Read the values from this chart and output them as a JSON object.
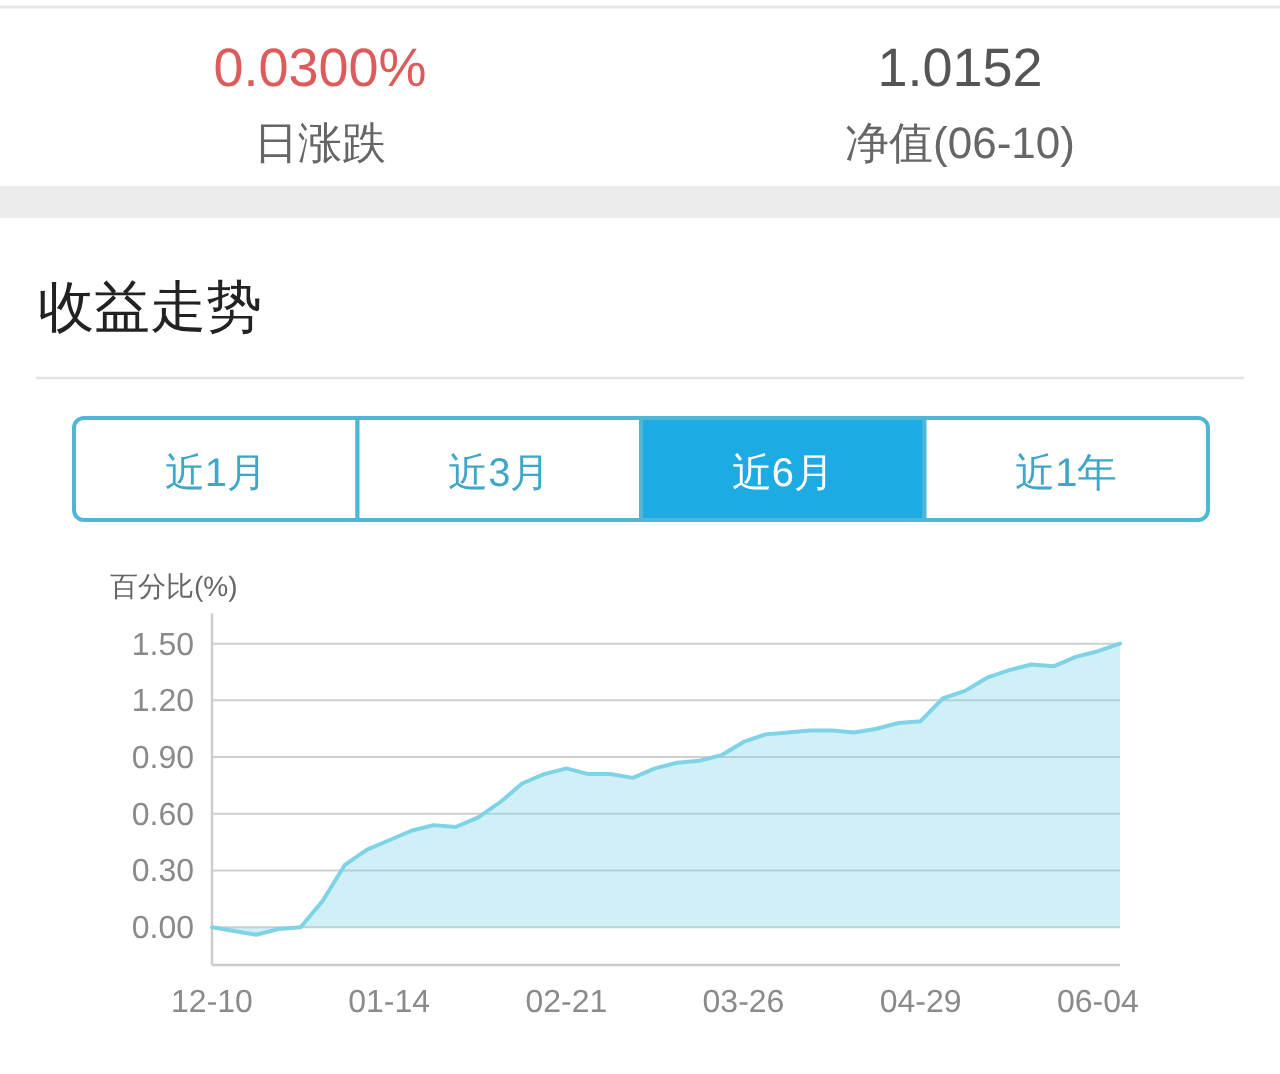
{
  "chart_data": [
    {
      "type": "other",
      "annotations": [
        "0.0300%",
        "日涨跌",
        "1.0152",
        "净值(06-10)"
      ]
    },
    {
      "type": "area",
      "title": "收益走势",
      "annotations": [
        "近1月",
        "近3月",
        "近6月",
        "近1年"
      ],
      "ylabel": "百分比(%)",
      "categories": [
        "12-10",
        null,
        null,
        null,
        null,
        null,
        null,
        null,
        "01-14",
        null,
        null,
        null,
        null,
        null,
        null,
        null,
        "02-21",
        null,
        null,
        null,
        null,
        null,
        null,
        null,
        "03-26",
        null,
        null,
        null,
        null,
        null,
        null,
        null,
        "04-29",
        null,
        null,
        null,
        null,
        null,
        null,
        null,
        "06-04",
        null
      ],
      "series": [
        {
          "color": "#7fd3e6",
          "values": [
            0.0,
            -0.02,
            -0.04,
            -0.01,
            0.0,
            0.14,
            0.33,
            0.41,
            0.46,
            0.51,
            0.54,
            0.53,
            0.58,
            0.66,
            0.76,
            0.81,
            0.84,
            0.81,
            0.81,
            0.79,
            0.84,
            0.87,
            0.88,
            0.91,
            0.98,
            1.02,
            1.03,
            1.04,
            1.04,
            1.03,
            1.05,
            1.08,
            1.09,
            1.21,
            1.25,
            1.32,
            1.36,
            1.39,
            1.38,
            1.43,
            1.46,
            1.5
          ]
        }
      ],
      "ylim": [
        -0.2,
        1.66
      ],
      "yticks": [
        {
          "value": 0,
          "label": "0.00"
        },
        {
          "value": 0.3,
          "label": "0.30"
        },
        {
          "value": 0.6,
          "label": "0.60"
        },
        {
          "value": 0.9,
          "label": "0.90"
        },
        {
          "value": 1.2,
          "label": "1.20"
        },
        {
          "value": 1.5,
          "label": "1.50"
        }
      ],
      "grid": "y"
    }
  ]
}
